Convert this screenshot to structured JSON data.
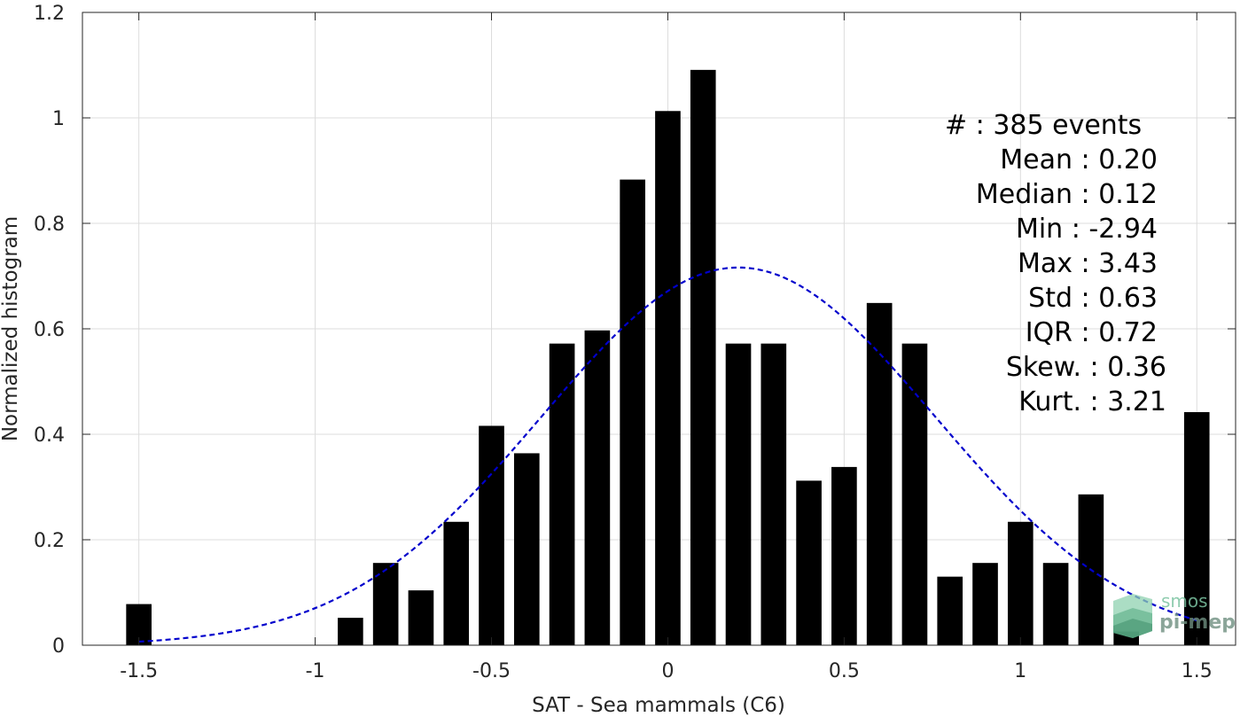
{
  "chart_data": {
    "type": "bar",
    "xlabel": "SAT - Sea mammals (C6)",
    "ylabel": "Normalized histogram",
    "xlim": [
      -1.66,
      1.61
    ],
    "ylim": [
      0,
      1.2
    ],
    "xticks": [
      -1.5,
      -1,
      -0.5,
      0,
      0.5,
      1,
      1.5
    ],
    "xtick_labels": [
      "-1.5",
      "-1",
      "-0.5",
      "0",
      "0.5",
      "1",
      "1.5"
    ],
    "yticks": [
      0,
      0.2,
      0.4,
      0.6,
      0.8,
      1,
      1.2
    ],
    "ytick_labels": [
      "0",
      "0.2",
      "0.4",
      "0.6",
      "0.8",
      "1",
      "1.2"
    ],
    "grid": true,
    "bar_width": 0.072,
    "bar_color": "#000000",
    "bars": {
      "x": [
        -1.5,
        -0.9,
        -0.8,
        -0.7,
        -0.6,
        -0.5,
        -0.4,
        -0.3,
        -0.2,
        -0.1,
        0,
        0.1,
        0.2,
        0.3,
        0.4,
        0.5,
        0.6,
        0.7,
        0.8,
        0.9,
        1.0,
        1.1,
        1.2,
        1.3,
        1.5
      ],
      "values": [
        0.078,
        0.052,
        0.156,
        0.104,
        0.234,
        0.416,
        0.364,
        0.572,
        0.597,
        0.883,
        1.013,
        1.091,
        0.572,
        0.572,
        0.312,
        0.338,
        0.649,
        0.572,
        0.13,
        0.156,
        0.234,
        0.156,
        0.286,
        0.026,
        0.442
      ]
    },
    "fit_curve": {
      "style": "dashed",
      "color": "#0000cc",
      "mean": 0.2,
      "std": 0.557,
      "x_range": [
        -1.5,
        1.5
      ]
    },
    "stats": [
      {
        "label": "#  : 385 events"
      },
      {
        "label": "Mean : 0.20"
      },
      {
        "label": "Median : 0.12"
      },
      {
        "label": "Min : -2.94"
      },
      {
        "label": "Max : 3.43"
      },
      {
        "label": "Std : 0.63"
      },
      {
        "label": "IQR : 0.72"
      },
      {
        "label": "Skew. : 0.36"
      },
      {
        "label": "Kurt. : 3.21"
      }
    ],
    "logo": {
      "text_top": "smos",
      "text_bottom": "pi-mep",
      "colors": [
        "#8fd1b0",
        "#5fb08a",
        "#3f8e6c"
      ]
    }
  }
}
